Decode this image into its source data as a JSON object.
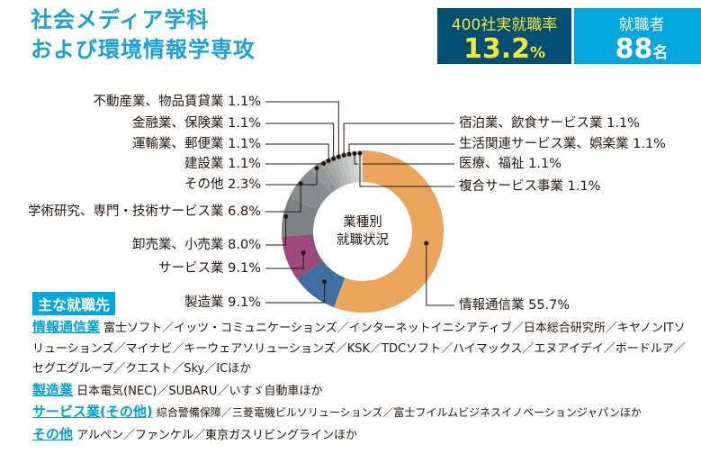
{
  "title": [
    "社会メディア学科",
    "および環境情報学専攻"
  ],
  "stats": [
    {
      "label": "400社実就職率",
      "value": "13.2",
      "unit": "%"
    },
    {
      "label": "就職者",
      "value": "88",
      "unit": "名"
    }
  ],
  "chart_data": {
    "type": "pie",
    "donut": true,
    "center_label": [
      "業種別",
      "就職状況"
    ],
    "slices": [
      {
        "label": "情報通信業",
        "value": 55.7,
        "color": "#e9a55c",
        "side": "r"
      },
      {
        "label": "製造業",
        "value": 9.1,
        "color": "#3f6fa0",
        "side": "l"
      },
      {
        "label": "サービス業",
        "value": 9.1,
        "color": "#9b4a7b",
        "side": "l"
      },
      {
        "label": "卸売業、小売業",
        "value": 8.0,
        "color": "#7d8383",
        "side": "l"
      },
      {
        "label": "学術研究、専門・技術サービス業",
        "value": 6.8,
        "color": "#878c8c",
        "side": "l"
      },
      {
        "label": "その他",
        "value": 2.3,
        "color": "#939797",
        "side": "l"
      },
      {
        "label": "建設業",
        "value": 1.1,
        "color": "#9ea1a1",
        "side": "l"
      },
      {
        "label": "運輸業、郵便業",
        "value": 1.1,
        "color": "#a6a9a9",
        "side": "l"
      },
      {
        "label": "金融業、保険業",
        "value": 1.1,
        "color": "#afb1b1",
        "side": "l"
      },
      {
        "label": "不動産業、物品賃貸業",
        "value": 1.1,
        "color": "#b8baba",
        "side": "l"
      },
      {
        "label": "宿泊業、飲食サービス業",
        "value": 1.1,
        "color": "#c2c3c3",
        "side": "r"
      },
      {
        "label": "生活関連サービス業、娯楽業",
        "value": 1.1,
        "color": "#cbcccc",
        "side": "r"
      },
      {
        "label": "医療、福祉",
        "value": 1.1,
        "color": "#d5d6d6",
        "side": "r"
      },
      {
        "label": "複合サービス事業",
        "value": 1.1,
        "color": "#dfe0e0",
        "side": "r"
      }
    ]
  },
  "section_title": "主な就職先",
  "employers": [
    {
      "category": "情報通信業",
      "names": "富士ソフト／イッツ・コミュニケーションズ／インターネットイニシアティブ／日本総合研究所／キヤノンITソリューションズ／マイナビ／キーウェアソリューションズ／KSK／TDCソフト／ハイマックス／エヌアイデイ／ボードルア／セグエグループ／クエスト／Sky／ICほか"
    },
    {
      "category": "製造業",
      "names": "日本電気(NEC)／SUBARU／いすゞ自動車ほか"
    },
    {
      "category": "サービス業(その他)",
      "names": "綜合警備保障／三菱電機ビルソリューションズ／富士フイルムビジネスイノベーションジャパンほか"
    },
    {
      "category": "その他",
      "names": "アルペン／ファンケル／東京ガスリビングラインほか"
    }
  ]
}
